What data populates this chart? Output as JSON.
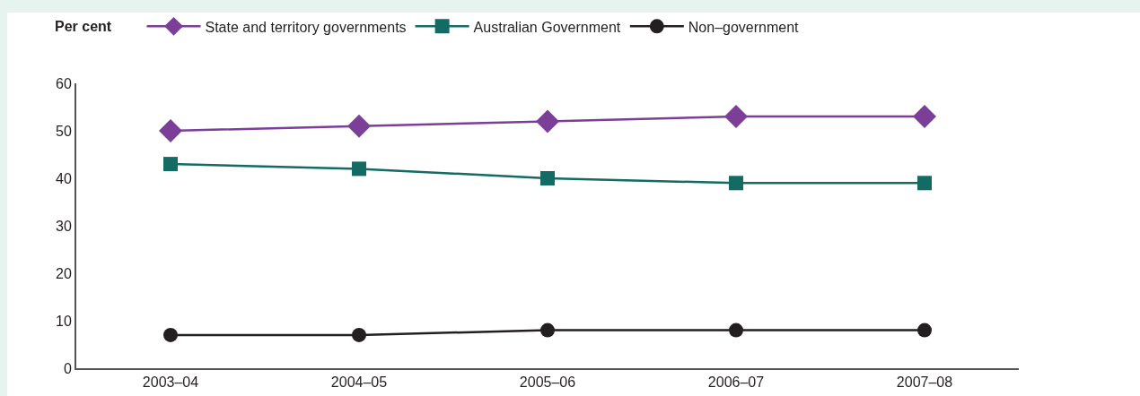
{
  "chart_data": {
    "type": "line",
    "ylabel": "Per cent",
    "categories": [
      "2003–04",
      "2004–05",
      "2005–06",
      "2006–07",
      "2007–08"
    ],
    "series": [
      {
        "name": "State and territory governments",
        "color": "#7b3f98",
        "marker": "diamond",
        "values": [
          50,
          51,
          52,
          53,
          53
        ]
      },
      {
        "name": "Australian Government",
        "color": "#146b63",
        "marker": "square",
        "values": [
          43,
          42,
          40,
          39,
          39
        ]
      },
      {
        "name": "Non–government",
        "color": "#231f20",
        "marker": "circle",
        "values": [
          7,
          7,
          8,
          8,
          8
        ]
      }
    ],
    "ylim": [
      0,
      60
    ],
    "yticks": [
      0,
      10,
      20,
      30,
      40,
      50,
      60
    ],
    "grid": false,
    "legend": "top",
    "line_style": "solid"
  }
}
